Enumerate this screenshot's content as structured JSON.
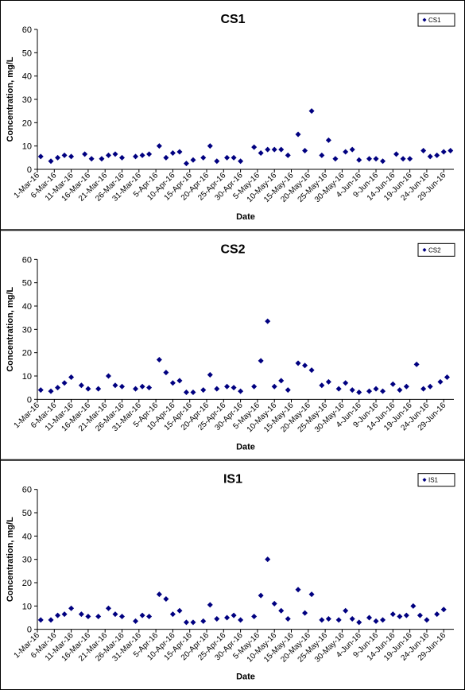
{
  "chart_data": [
    {
      "type": "scatter",
      "title": "CS1",
      "xlabel": "Date",
      "ylabel": "Concentration, mg/L",
      "legend": "upper right",
      "x": [
        "2016-03-02",
        "2016-03-05",
        "2016-03-07",
        "2016-03-09",
        "2016-03-11",
        "2016-03-15",
        "2016-03-17",
        "2016-03-20",
        "2016-03-22",
        "2016-03-24",
        "2016-03-26",
        "2016-03-30",
        "2016-04-01",
        "2016-04-03",
        "2016-04-06",
        "2016-04-08",
        "2016-04-10",
        "2016-04-12",
        "2016-04-14",
        "2016-04-16",
        "2016-04-19",
        "2016-04-21",
        "2016-04-23",
        "2016-04-26",
        "2016-04-28",
        "2016-04-30",
        "2016-05-04",
        "2016-05-06",
        "2016-05-08",
        "2016-05-10",
        "2016-05-12",
        "2016-05-14",
        "2016-05-17",
        "2016-05-19",
        "2016-05-21",
        "2016-05-24",
        "2016-05-26",
        "2016-05-28",
        "2016-05-31",
        "2016-06-02",
        "2016-06-04",
        "2016-06-07",
        "2016-06-09",
        "2016-06-11",
        "2016-06-15",
        "2016-06-17",
        "2016-06-19",
        "2016-06-23",
        "2016-06-25",
        "2016-06-27",
        "2016-06-29",
        "2016-07-01"
      ],
      "series": [
        {
          "name": "CS1",
          "color": "#000080",
          "values": [
            5.5,
            3.5,
            5,
            6,
            5.5,
            6.5,
            4.5,
            4.5,
            6,
            6.5,
            5,
            5.5,
            6,
            6.5,
            10,
            5,
            7,
            7.5,
            2.5,
            4,
            5,
            10,
            3.5,
            5,
            5,
            3.5,
            9.5,
            7,
            8.5,
            8.5,
            8.5,
            6,
            15,
            8,
            25,
            6,
            12.5,
            4.5,
            7.5,
            8.5,
            4,
            4.5,
            4.5,
            3.5,
            6.5,
            4.5,
            4.5,
            8,
            5.5,
            6,
            7.5,
            8
          ]
        }
      ],
      "xlim": [
        "2016-03-01",
        "2016-07-02"
      ],
      "ylim": [
        0,
        60
      ],
      "yticks": [
        0,
        10,
        20,
        30,
        40,
        50,
        60
      ],
      "xticks": [
        {
          "value": "2016-03-01",
          "label": "1-Mar-16"
        },
        {
          "value": "2016-03-06",
          "label": "6-Mar-16"
        },
        {
          "value": "2016-03-11",
          "label": "11-Mar-16"
        },
        {
          "value": "2016-03-16",
          "label": "16-Mar-16"
        },
        {
          "value": "2016-03-21",
          "label": "21-Mar-16"
        },
        {
          "value": "2016-03-26",
          "label": "26-Mar-16"
        },
        {
          "value": "2016-03-31",
          "label": "31-Mar-16"
        },
        {
          "value": "2016-04-05",
          "label": "5-Apr-16"
        },
        {
          "value": "2016-04-10",
          "label": "10-Apr-16"
        },
        {
          "value": "2016-04-15",
          "label": "15-Apr-16"
        },
        {
          "value": "2016-04-20",
          "label": "20-Apr-16"
        },
        {
          "value": "2016-04-25",
          "label": "25-Apr-16"
        },
        {
          "value": "2016-04-30",
          "label": "30-Apr-16"
        },
        {
          "value": "2016-05-05",
          "label": "5-May-16"
        },
        {
          "value": "2016-05-10",
          "label": "10-May-16"
        },
        {
          "value": "2016-05-15",
          "label": "15-May-16"
        },
        {
          "value": "2016-05-20",
          "label": "20-May-16"
        },
        {
          "value": "2016-05-25",
          "label": "25-May-16"
        },
        {
          "value": "2016-05-30",
          "label": "30-May-16"
        },
        {
          "value": "2016-06-04",
          "label": "4-Jun-16"
        },
        {
          "value": "2016-06-09",
          "label": "9-Jun-16"
        },
        {
          "value": "2016-06-14",
          "label": "14-Jun-16"
        },
        {
          "value": "2016-06-19",
          "label": "19-Jun-16"
        },
        {
          "value": "2016-06-24",
          "label": "24-Jun-16"
        },
        {
          "value": "2016-06-29",
          "label": "29-Jun-16"
        }
      ]
    },
    {
      "type": "scatter",
      "title": "CS2",
      "xlabel": "Date",
      "ylabel": "Concentration, mg/L",
      "legend": "upper right",
      "x": [
        "2016-03-02",
        "2016-03-05",
        "2016-03-07",
        "2016-03-09",
        "2016-03-11",
        "2016-03-14",
        "2016-03-16",
        "2016-03-19",
        "2016-03-22",
        "2016-03-24",
        "2016-03-26",
        "2016-03-30",
        "2016-04-01",
        "2016-04-03",
        "2016-04-06",
        "2016-04-08",
        "2016-04-10",
        "2016-04-12",
        "2016-04-14",
        "2016-04-16",
        "2016-04-19",
        "2016-04-21",
        "2016-04-23",
        "2016-04-26",
        "2016-04-28",
        "2016-04-30",
        "2016-05-04",
        "2016-05-06",
        "2016-05-08",
        "2016-05-10",
        "2016-05-12",
        "2016-05-14",
        "2016-05-17",
        "2016-05-19",
        "2016-05-21",
        "2016-05-24",
        "2016-05-26",
        "2016-05-29",
        "2016-05-31",
        "2016-06-02",
        "2016-06-04",
        "2016-06-07",
        "2016-06-09",
        "2016-06-11",
        "2016-06-14",
        "2016-06-16",
        "2016-06-18",
        "2016-06-21",
        "2016-06-23",
        "2016-06-25",
        "2016-06-28",
        "2016-06-30"
      ],
      "series": [
        {
          "name": "CS2",
          "color": "#000080",
          "values": [
            4,
            3.5,
            5,
            7,
            9.5,
            6,
            4.5,
            4.5,
            10,
            6,
            5.5,
            4.5,
            5.5,
            5,
            17,
            11.5,
            7,
            8,
            3,
            3,
            4,
            10.5,
            4.5,
            5.5,
            5,
            3.5,
            5.5,
            16.5,
            33.5,
            5.5,
            8,
            4,
            15.5,
            14.5,
            12.5,
            6,
            7.5,
            4.5,
            7,
            4,
            3,
            3.5,
            4.5,
            3.5,
            6.5,
            4,
            5.5,
            15,
            4.5,
            5.5,
            7.5,
            9.5
          ]
        }
      ],
      "xlim": [
        "2016-03-01",
        "2016-07-02"
      ],
      "ylim": [
        0,
        60
      ],
      "yticks": [
        0,
        10,
        20,
        30,
        40,
        50,
        60
      ],
      "xticks": [
        {
          "value": "2016-03-01",
          "label": "1-Mar-16"
        },
        {
          "value": "2016-03-06",
          "label": "6-Mar-16"
        },
        {
          "value": "2016-03-11",
          "label": "11-Mar-16"
        },
        {
          "value": "2016-03-16",
          "label": "16-Mar-16"
        },
        {
          "value": "2016-03-21",
          "label": "21-Mar-16"
        },
        {
          "value": "2016-03-26",
          "label": "26-Mar-16"
        },
        {
          "value": "2016-03-31",
          "label": "31-Mar-16"
        },
        {
          "value": "2016-04-05",
          "label": "5-Apr-16"
        },
        {
          "value": "2016-04-10",
          "label": "10-Apr-16"
        },
        {
          "value": "2016-04-15",
          "label": "15-Apr-16"
        },
        {
          "value": "2016-04-20",
          "label": "20-Apr-16"
        },
        {
          "value": "2016-04-25",
          "label": "25-Apr-16"
        },
        {
          "value": "2016-04-30",
          "label": "30-Apr-16"
        },
        {
          "value": "2016-05-05",
          "label": "5-May-16"
        },
        {
          "value": "2016-05-10",
          "label": "10-May-16"
        },
        {
          "value": "2016-05-15",
          "label": "15-May-16"
        },
        {
          "value": "2016-05-20",
          "label": "20-May-16"
        },
        {
          "value": "2016-05-25",
          "label": "25-May-16"
        },
        {
          "value": "2016-05-30",
          "label": "30-May-16"
        },
        {
          "value": "2016-06-04",
          "label": "4-Jun-16"
        },
        {
          "value": "2016-06-09",
          "label": "9-Jun-16"
        },
        {
          "value": "2016-06-14",
          "label": "14-Jun-16"
        },
        {
          "value": "2016-06-19",
          "label": "19-Jun-16"
        },
        {
          "value": "2016-06-24",
          "label": "24-Jun-16"
        },
        {
          "value": "2016-06-29",
          "label": "29-Jun-16"
        }
      ]
    },
    {
      "type": "scatter",
      "title": "IS1",
      "xlabel": "Date",
      "ylabel": "Concentration, mg/L",
      "legend": "upper right",
      "x": [
        "2016-03-02",
        "2016-03-05",
        "2016-03-07",
        "2016-03-09",
        "2016-03-11",
        "2016-03-14",
        "2016-03-16",
        "2016-03-19",
        "2016-03-22",
        "2016-03-24",
        "2016-03-26",
        "2016-03-30",
        "2016-04-01",
        "2016-04-03",
        "2016-04-06",
        "2016-04-08",
        "2016-04-10",
        "2016-04-12",
        "2016-04-14",
        "2016-04-16",
        "2016-04-19",
        "2016-04-21",
        "2016-04-23",
        "2016-04-26",
        "2016-04-28",
        "2016-04-30",
        "2016-05-04",
        "2016-05-06",
        "2016-05-08",
        "2016-05-10",
        "2016-05-12",
        "2016-05-14",
        "2016-05-17",
        "2016-05-19",
        "2016-05-21",
        "2016-05-24",
        "2016-05-26",
        "2016-05-29",
        "2016-05-31",
        "2016-06-02",
        "2016-06-04",
        "2016-06-07",
        "2016-06-09",
        "2016-06-11",
        "2016-06-14",
        "2016-06-16",
        "2016-06-18",
        "2016-06-20",
        "2016-06-22",
        "2016-06-24",
        "2016-06-27",
        "2016-06-29"
      ],
      "series": [
        {
          "name": "IS1",
          "color": "#000080",
          "values": [
            4,
            4,
            6,
            6.5,
            9,
            6.5,
            5.5,
            5.5,
            9,
            6.5,
            5.5,
            3.5,
            6,
            5.5,
            15,
            13,
            6.5,
            8,
            3,
            3,
            3.5,
            10.5,
            4.5,
            5,
            6,
            4,
            5.5,
            14.5,
            30,
            11,
            8,
            4.5,
            17,
            7,
            15,
            4,
            4.5,
            4,
            8,
            4.5,
            3,
            5,
            3.5,
            4,
            6.5,
            5.5,
            6,
            10,
            6,
            4,
            6.5,
            8.5
          ]
        }
      ],
      "xlim": [
        "2016-03-01",
        "2016-07-02"
      ],
      "ylim": [
        0,
        60
      ],
      "yticks": [
        0,
        10,
        20,
        30,
        40,
        50,
        60
      ],
      "xticks": [
        {
          "value": "2016-03-01",
          "label": "1-Mar-16"
        },
        {
          "value": "2016-03-06",
          "label": "6-Mar-16"
        },
        {
          "value": "2016-03-11",
          "label": "11-Mar-16"
        },
        {
          "value": "2016-03-16",
          "label": "16-Mar-16"
        },
        {
          "value": "2016-03-21",
          "label": "21-Mar-16"
        },
        {
          "value": "2016-03-26",
          "label": "26-Mar-16"
        },
        {
          "value": "2016-03-31",
          "label": "31-Mar-16"
        },
        {
          "value": "2016-04-05",
          "label": "5-Apr-16"
        },
        {
          "value": "2016-04-10",
          "label": "10-Apr-16"
        },
        {
          "value": "2016-04-15",
          "label": "15-Apr-16"
        },
        {
          "value": "2016-04-20",
          "label": "20-Apr-16"
        },
        {
          "value": "2016-04-25",
          "label": "25-Apr-16"
        },
        {
          "value": "2016-04-30",
          "label": "30-Apr-16"
        },
        {
          "value": "2016-05-05",
          "label": "5-May-16"
        },
        {
          "value": "2016-05-10",
          "label": "10-May-16"
        },
        {
          "value": "2016-05-15",
          "label": "15-May-16"
        },
        {
          "value": "2016-05-20",
          "label": "20-May-16"
        },
        {
          "value": "2016-05-25",
          "label": "25-May-16"
        },
        {
          "value": "2016-05-30",
          "label": "30-May-16"
        },
        {
          "value": "2016-06-04",
          "label": "4-Jun-16"
        },
        {
          "value": "2016-06-09",
          "label": "9-Jun-16"
        },
        {
          "value": "2016-06-14",
          "label": "14-Jun-16"
        },
        {
          "value": "2016-06-19",
          "label": "19-Jun-16"
        },
        {
          "value": "2016-06-24",
          "label": "24-Jun-16"
        },
        {
          "value": "2016-06-29",
          "label": "29-Jun-16"
        }
      ]
    }
  ]
}
